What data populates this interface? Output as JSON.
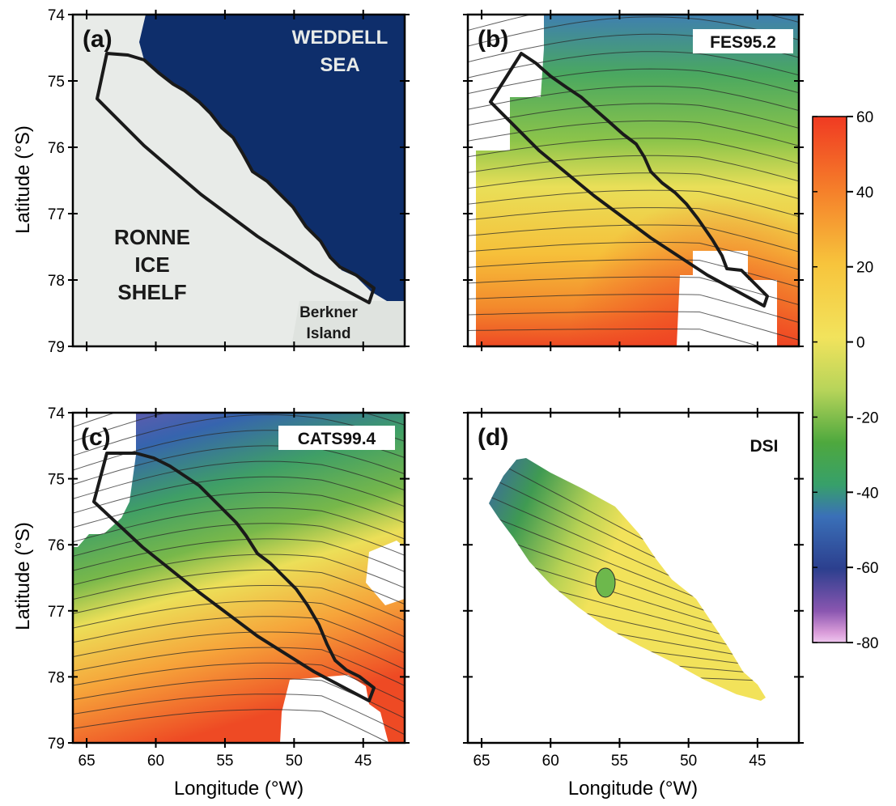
{
  "axes": {
    "ylabel": "Latitude (°S)",
    "xlabel": "Longitude (°W)",
    "lat_ticks": [
      "74",
      "75",
      "76",
      "77",
      "78",
      "79"
    ],
    "lon_ticks": [
      "65",
      "60",
      "55",
      "50",
      "45"
    ]
  },
  "panels": {
    "a": {
      "label": "(a)",
      "weddell": [
        "WEDDELL",
        "SEA"
      ],
      "ronne": [
        "RONNE",
        "ICE",
        "SHELF"
      ],
      "berkner": [
        "Berkner",
        "Island"
      ],
      "colors": {
        "ocean": "#0e2e6b",
        "ice": "#e8ebe8",
        "land": "#dfe3df"
      }
    },
    "b": {
      "label": "(b)",
      "model": "FES95.2"
    },
    "c": {
      "label": "(c)",
      "model": "CATS99.4"
    },
    "d": {
      "label": "(d)",
      "model": "DSI"
    }
  },
  "colorbar": {
    "ticks": [
      "60",
      "40",
      "20",
      "0",
      "-20",
      "-40",
      "-60",
      "-80"
    ],
    "range": [
      -80,
      60
    ],
    "colors": [
      "#f03a22",
      "#f7a52a",
      "#f5e25a",
      "#9ccc4b",
      "#3aa33a",
      "#3668b0",
      "#2a3a8a",
      "#8a56b0",
      "#d69ad8"
    ]
  }
}
